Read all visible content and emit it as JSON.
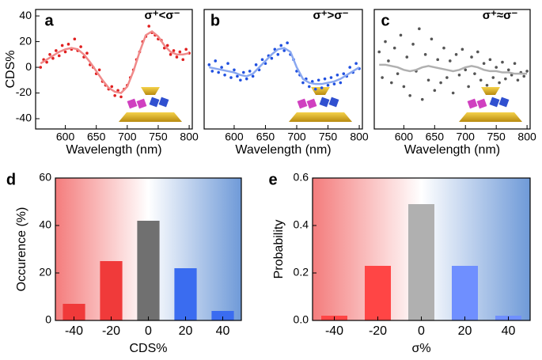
{
  "chart_data": [
    {
      "type": "scatter",
      "label": "a",
      "annotation": "σ⁺<σ⁻",
      "xlabel": "Wavelength (nm)",
      "ylabel": "CDS%",
      "xlim": [
        552,
        805
      ],
      "ylim": [
        -48,
        45
      ],
      "xticks": [
        600,
        650,
        700,
        750,
        800
      ],
      "yticks": [
        40,
        20,
        0,
        -20,
        -40
      ],
      "series": [
        {
          "style": "markers",
          "color": "#e02020",
          "x": [
            560,
            565,
            570,
            575,
            580,
            585,
            590,
            595,
            600,
            605,
            610,
            615,
            620,
            625,
            630,
            635,
            640,
            645,
            650,
            655,
            660,
            665,
            670,
            675,
            680,
            685,
            690,
            695,
            700,
            705,
            710,
            715,
            720,
            725,
            730,
            735,
            740,
            745,
            750,
            755,
            760,
            765,
            770,
            775,
            780,
            785,
            790,
            795,
            800
          ],
          "values": [
            0,
            6,
            4,
            10,
            7,
            13,
            9,
            17,
            12,
            18,
            14,
            22,
            13,
            16,
            8,
            11,
            2,
            0,
            -5,
            -2,
            -11,
            -14,
            -17,
            -15,
            -22,
            -18,
            -23,
            -17,
            -14,
            -8,
            -2,
            6,
            12,
            20,
            24,
            32,
            27,
            25,
            22,
            21,
            15,
            17,
            10,
            13,
            8,
            12,
            6,
            14,
            11
          ]
        },
        {
          "style": "line",
          "color": "#f08a8a",
          "x": [
            560,
            570,
            580,
            590,
            600,
            610,
            620,
            630,
            640,
            650,
            660,
            670,
            680,
            690,
            700,
            710,
            720,
            730,
            740,
            750,
            760,
            770,
            780,
            790,
            800
          ],
          "values": [
            3,
            6,
            9,
            12,
            14,
            15,
            14,
            10,
            4,
            -3,
            -10,
            -16,
            -19,
            -20,
            -15,
            -3,
            12,
            25,
            28,
            24,
            17,
            12,
            10,
            10,
            11
          ]
        }
      ]
    },
    {
      "type": "scatter",
      "label": "b",
      "annotation": "σ⁺>σ⁻",
      "xlabel": "Wavelength (nm)",
      "xlim": [
        552,
        805
      ],
      "ylim": [
        -48,
        45
      ],
      "xticks": [
        600,
        650,
        700,
        750,
        800
      ],
      "series": [
        {
          "style": "markers",
          "color": "#2050e0",
          "x": [
            560,
            565,
            570,
            575,
            580,
            585,
            590,
            595,
            600,
            605,
            610,
            615,
            620,
            625,
            630,
            635,
            640,
            645,
            650,
            655,
            660,
            665,
            670,
            675,
            680,
            685,
            690,
            695,
            700,
            705,
            710,
            715,
            720,
            725,
            730,
            735,
            740,
            745,
            750,
            755,
            760,
            765,
            770,
            775,
            780,
            785,
            790,
            795,
            800
          ],
          "values": [
            2,
            -3,
            5,
            -4,
            0,
            -6,
            3,
            -8,
            -2,
            -7,
            -10,
            -4,
            -9,
            -3,
            -7,
            2,
            -2,
            6,
            3,
            9,
            7,
            14,
            10,
            17,
            13,
            19,
            10,
            6,
            -3,
            -6,
            -12,
            -9,
            -15,
            -11,
            -17,
            -10,
            -16,
            -9,
            -14,
            -8,
            -13,
            -6,
            -12,
            -5,
            -7,
            0,
            -4,
            3,
            -1
          ]
        },
        {
          "style": "line",
          "color": "#8aa8f0",
          "x": [
            560,
            570,
            580,
            590,
            600,
            610,
            620,
            630,
            640,
            650,
            660,
            670,
            680,
            690,
            700,
            710,
            720,
            730,
            740,
            750,
            760,
            770,
            780,
            790,
            800
          ],
          "values": [
            0,
            -1,
            -2,
            -3,
            -4,
            -6,
            -7,
            -5,
            0,
            5,
            10,
            14,
            15,
            12,
            0,
            -9,
            -12,
            -13,
            -13,
            -12,
            -11,
            -9,
            -6,
            -3,
            0
          ]
        }
      ]
    },
    {
      "type": "scatter",
      "label": "c",
      "annotation": "σ⁺≈σ⁻",
      "xlabel": "Wavelength (nm)",
      "xlim": [
        552,
        805
      ],
      "ylim": [
        -48,
        45
      ],
      "xticks": [
        600,
        650,
        700,
        750,
        800
      ],
      "series": [
        {
          "style": "markers",
          "color": "#555555",
          "x": [
            560,
            565,
            570,
            575,
            580,
            585,
            590,
            595,
            600,
            605,
            610,
            615,
            620,
            625,
            630,
            635,
            640,
            645,
            650,
            655,
            660,
            665,
            670,
            675,
            680,
            685,
            690,
            695,
            700,
            705,
            710,
            715,
            720,
            725,
            730,
            735,
            740,
            745,
            750,
            755,
            760,
            765,
            770,
            775,
            780,
            785,
            790,
            795,
            800
          ],
          "values": [
            12,
            -8,
            20,
            5,
            -12,
            15,
            -5,
            25,
            -15,
            8,
            -22,
            18,
            -3,
            30,
            -25,
            10,
            -10,
            22,
            -18,
            6,
            -12,
            15,
            -8,
            5,
            -20,
            10,
            -6,
            14,
            -2,
            -15,
            8,
            -5,
            12,
            -10,
            3,
            -14,
            6,
            -8,
            0,
            -12,
            4,
            -9,
            -2,
            -6,
            3,
            -10,
            -4,
            -7,
            -3
          ]
        },
        {
          "style": "line",
          "color": "#b0b0b0",
          "x": [
            560,
            570,
            580,
            590,
            600,
            610,
            620,
            630,
            640,
            650,
            660,
            670,
            680,
            690,
            700,
            710,
            720,
            730,
            740,
            750,
            760,
            770,
            780,
            790,
            800
          ],
          "values": [
            2,
            2,
            1,
            0,
            -2,
            -3,
            -2,
            0,
            1,
            0,
            -1,
            -2,
            -3,
            -2,
            0,
            1,
            0,
            -2,
            -3,
            -3,
            -4,
            -4,
            -5,
            -5,
            -5
          ]
        }
      ]
    },
    {
      "type": "bar",
      "label": "d",
      "xlabel": "CDS%",
      "ylabel": "Occurence (%)",
      "categories": [
        "-40",
        "-20",
        "0",
        "20",
        "40"
      ],
      "values": [
        7,
        25,
        42,
        22,
        4
      ],
      "colors": [
        "#f03a3a",
        "#f03a3a",
        "#707070",
        "#3a6cf0",
        "#3a6cf0"
      ],
      "ylim": [
        0,
        60
      ],
      "yticks": [
        0,
        20,
        40,
        60
      ]
    },
    {
      "type": "bar",
      "label": "e",
      "xlabel": "σ%",
      "ylabel": "Probability",
      "categories": [
        "-40",
        "-20",
        "0",
        "20",
        "40"
      ],
      "values": [
        0.02,
        0.23,
        0.49,
        0.23,
        0.02
      ],
      "colors": [
        "#ff4545",
        "#ff4545",
        "#b0b0b0",
        "#6f8fff",
        "#6f8fff"
      ],
      "ylim": [
        0,
        0.6
      ],
      "yticks": [
        {
          "value": 0,
          "label": "0.0"
        },
        0.2,
        0.4,
        0.6
      ]
    }
  ]
}
